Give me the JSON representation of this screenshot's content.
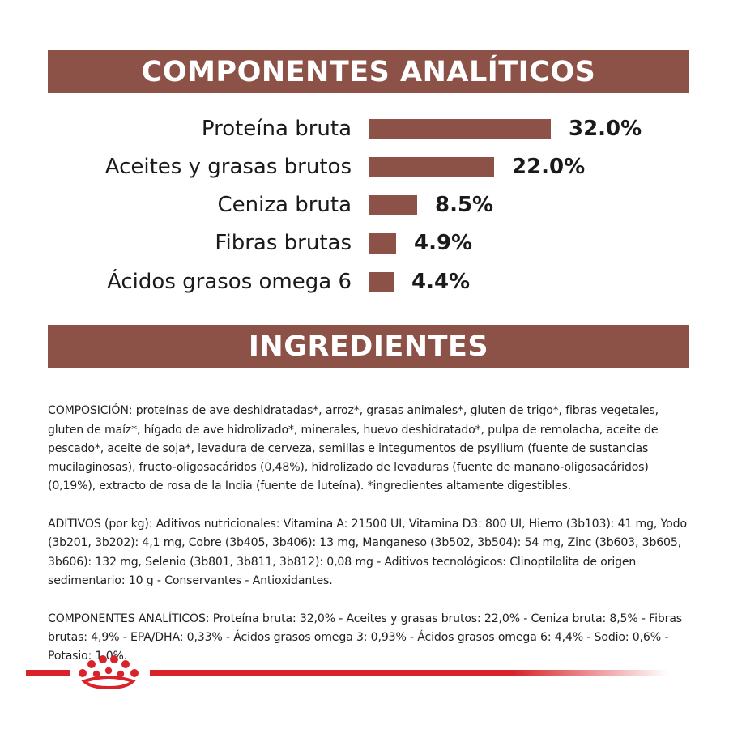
{
  "analytics_header": "COMPONENTES ANALÍTICOS",
  "chart_data": {
    "type": "bar",
    "categories": [
      "Proteína bruta",
      "Aceites y grasas brutos",
      "Ceniza bruta",
      "Fibras brutas",
      "Ácidos grasos omega 6"
    ],
    "values": [
      32.0,
      22.0,
      8.5,
      4.9,
      4.4
    ],
    "value_labels": [
      "32.0%",
      "22.0%",
      "8.5%",
      "4.9%",
      "4.4%"
    ],
    "orientation": "horizontal",
    "unit": "%"
  },
  "ingredients_header": "INGREDIENTES",
  "ingredients": {
    "composition": "COMPOSICIÓN: proteínas de ave deshidratadas*, arroz*, grasas animales*, gluten de trigo*, fibras vegetales, gluten de maíz*, hígado de ave hidrolizado*, minerales, huevo deshidratado*, pulpa de remolacha, aceite de pescado*, aceite de soja*, levadura de cerveza, semillas e integumentos de psyllium (fuente de sustancias mucilaginosas), fructo-oligosacáridos (0,48%), hidrolizado de levaduras (fuente de manano-oligosacáridos) (0,19%), extracto de rosa de la India (fuente de luteína). *ingredientes altamente digestibles.",
    "additives": "ADITIVOS (por kg): Aditivos nutricionales: Vitamina A: 21500 UI, Vitamina D3: 800 UI, Hierro (3b103): 41 mg, Yodo (3b201, 3b202): 4,1 mg, Cobre (3b405, 3b406): 13 mg, Manganeso (3b502, 3b504): 54 mg, Zinc (3b603, 3b605, 3b606): 132 mg, Selenio (3b801, 3b811, 3b812): 0,08 mg - Aditivos tecnológicos: Clinoptilolita de origen sedimentario: 10 g - Conservantes - Antioxidantes.",
    "analytical": "COMPONENTES ANALÍTICOS: Proteína bruta: 32,0% - Aceites y grasas brutos: 22,0% - Ceniza bruta: 8,5% - Fibras brutas: 4,9% - EPA/DHA: 0,33% - Ácidos grasos omega 3: 0,93% - Ácidos grasos omega 6: 4,4% - Sodio: 0,6% - Potasio: 1,0%."
  },
  "footer": {
    "logo": "crown-icon",
    "brand_color": "#d8232a"
  },
  "colors": {
    "accent": "#8c5247",
    "text": "#1a1a1a"
  }
}
